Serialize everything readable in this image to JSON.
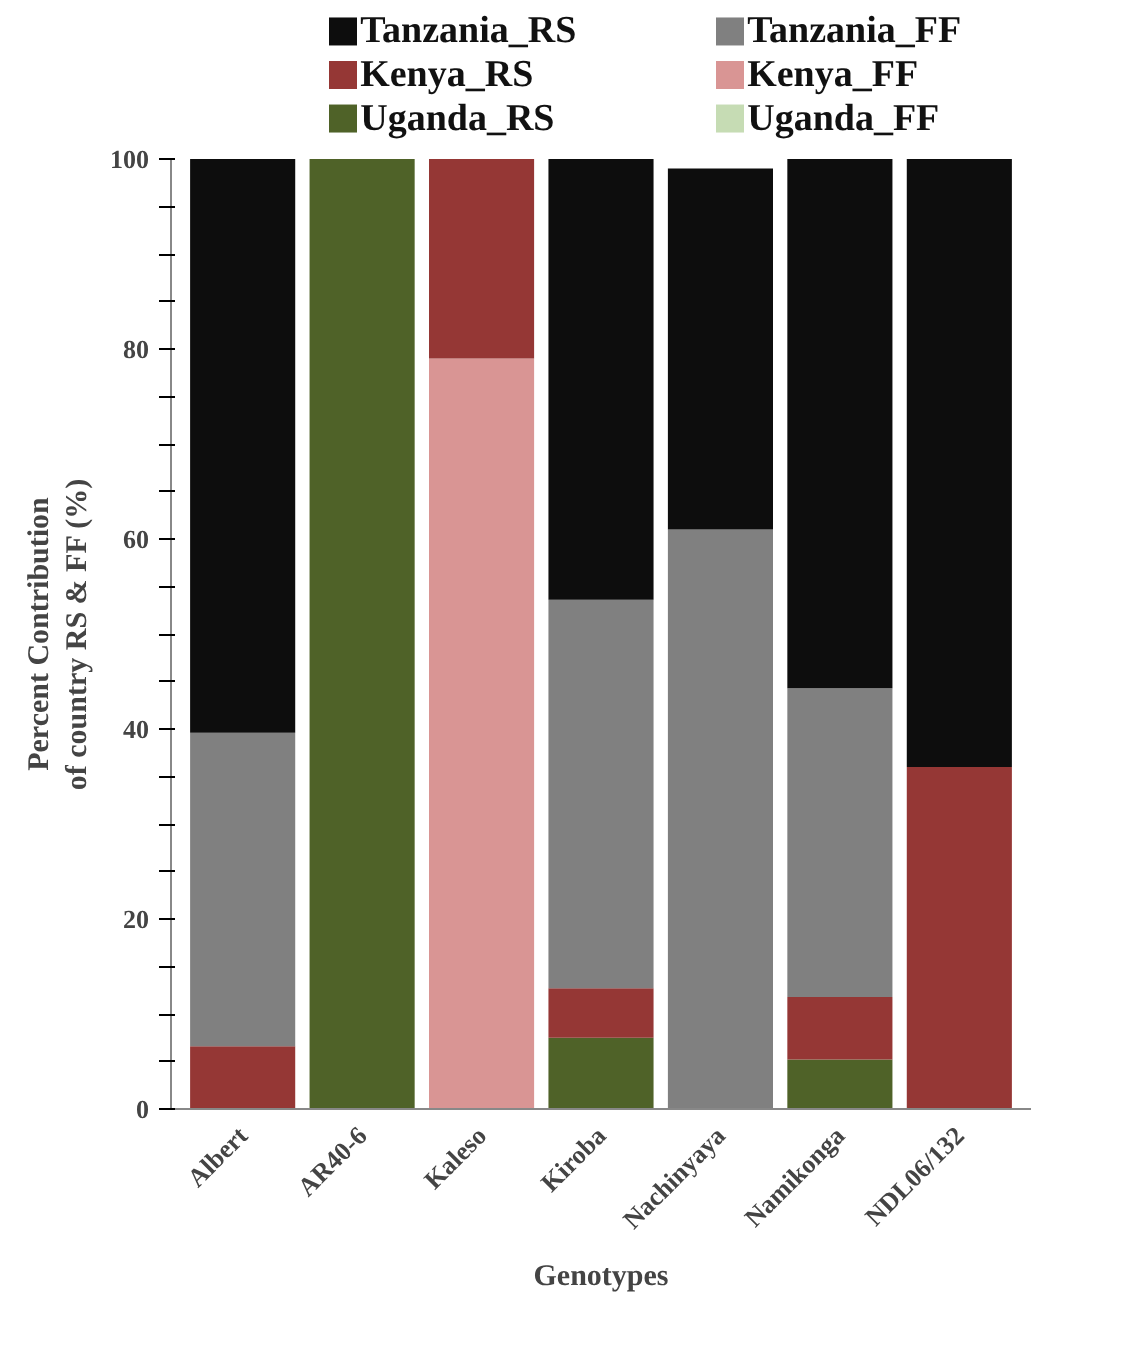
{
  "chart_data": {
    "type": "bar",
    "stacked": true,
    "xlabel": "Genotypes",
    "ylabel": "Percent Contribution\nof country RS & FF (%)",
    "categories": [
      "Albert",
      "AR40-6",
      "Kaleso",
      "Kiroba",
      "Nachinyaya",
      "Namikonga",
      "NDL06/132"
    ],
    "series": [
      {
        "name": "Uganda_FF",
        "color": "#c6dcb4",
        "values": [
          0,
          0,
          0,
          0,
          0,
          0,
          0
        ]
      },
      {
        "name": "Uganda_RS",
        "color": "#4f6228",
        "values": [
          0,
          100,
          0,
          7.5,
          0,
          5.2,
          0
        ]
      },
      {
        "name": "Kenya_FF",
        "color": "#d99594",
        "values": [
          0,
          0,
          79,
          0,
          0,
          0,
          0
        ]
      },
      {
        "name": "Kenya_RS",
        "color": "#953735",
        "values": [
          6.6,
          0,
          21,
          5.2,
          0,
          6.6,
          36
        ]
      },
      {
        "name": "Tanzania_FF",
        "color": "#808080",
        "values": [
          33,
          0,
          0,
          40.9,
          61,
          32.5,
          0
        ]
      },
      {
        "name": "Tanzania_RS",
        "color": "#0d0d0d",
        "values": [
          60.4,
          0,
          0,
          46.4,
          38,
          55.7,
          64
        ]
      }
    ],
    "ylim": [
      0,
      100
    ],
    "yticks": [
      0,
      {
        "value": 5,
        "label": null
      },
      {
        "value": 10,
        "label": null
      },
      {
        "value": 15,
        "label": null
      },
      20,
      {
        "value": 25,
        "label": null
      },
      {
        "value": 30,
        "label": null
      },
      {
        "value": 35,
        "label": null
      },
      40,
      {
        "value": 45,
        "label": null
      },
      {
        "value": 50,
        "label": null
      },
      {
        "value": 55,
        "label": null
      },
      60,
      {
        "value": 65,
        "label": null
      },
      {
        "value": 70,
        "label": null
      },
      {
        "value": 75,
        "label": null
      },
      80,
      {
        "value": 85,
        "label": null
      },
      {
        "value": 90,
        "label": null
      },
      {
        "value": 95,
        "label": null
      },
      100
    ],
    "grid": false,
    "legend": "top"
  }
}
